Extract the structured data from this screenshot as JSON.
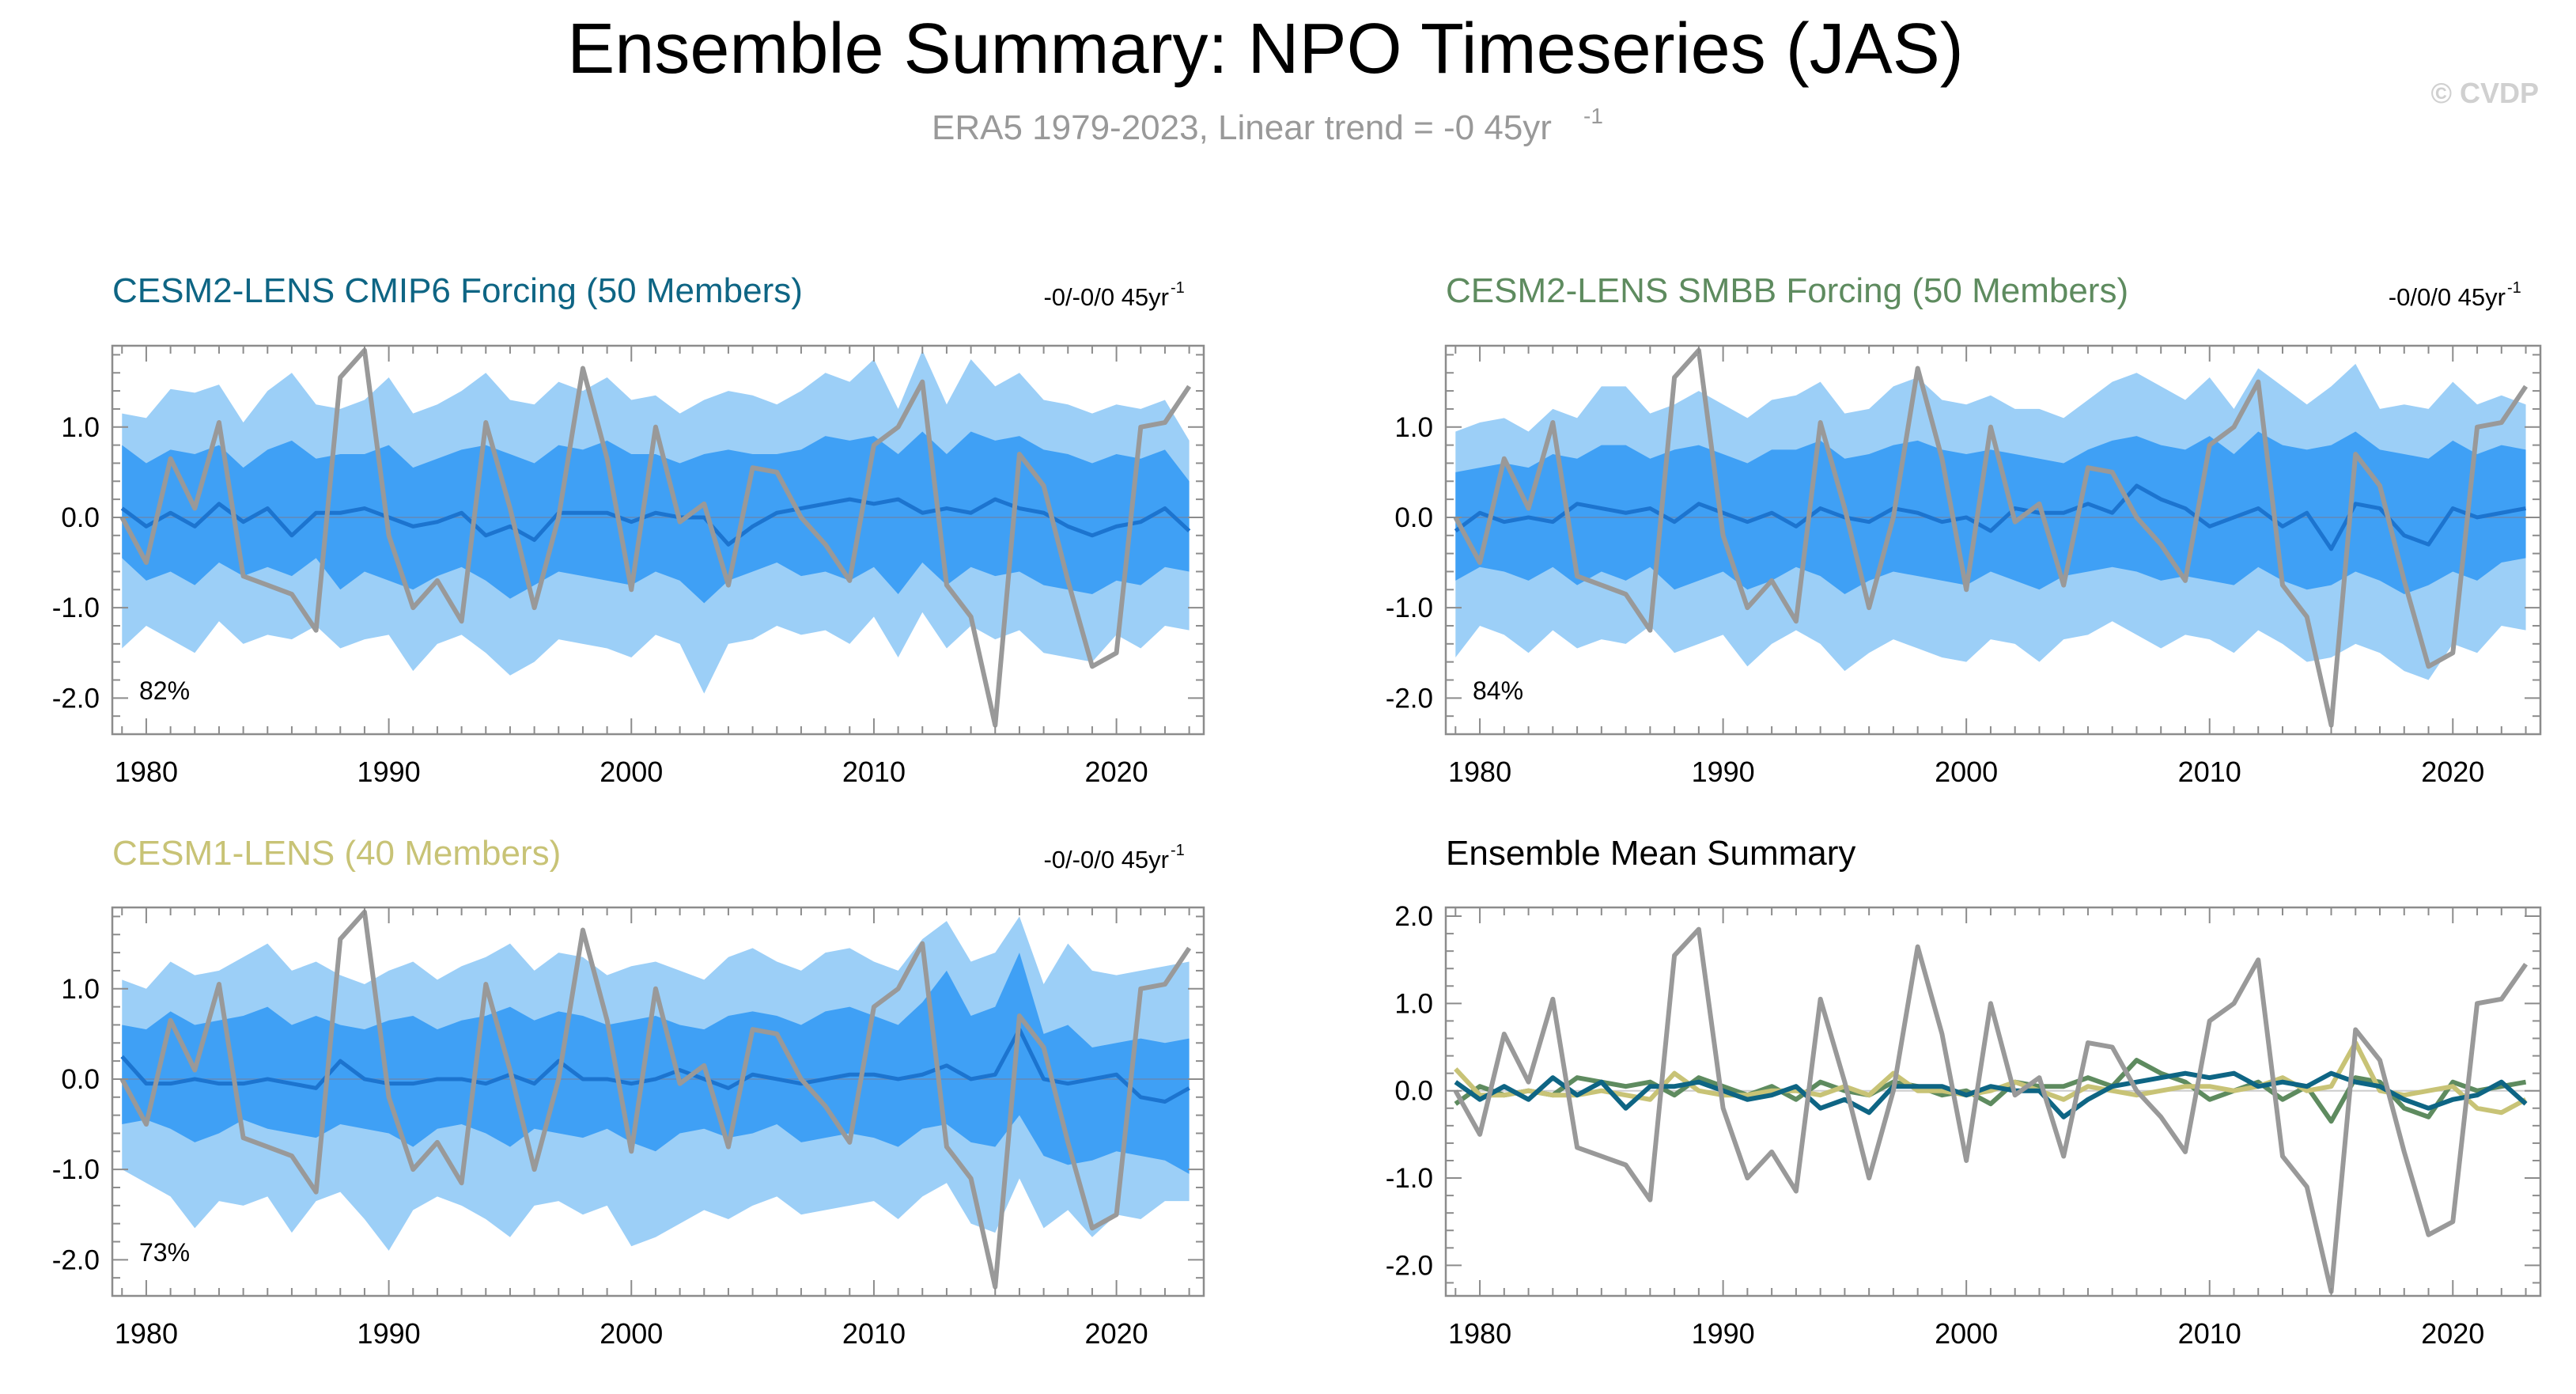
{
  "header": {
    "title": "Ensemble Summary: NPO Timeseries (JAS)",
    "subtitle_main": "ERA5 1979-2023, Linear trend = -0 45yr",
    "subtitle_sup": "-1",
    "watermark": "© CVDP"
  },
  "colors": {
    "obs": "#999999",
    "band_outer": "#9ccff7",
    "band_inner": "#3fa0f5",
    "ens_mean": "#1c74cf",
    "cesm2_cmip6": "#0e6584",
    "cesm2_smbb": "#5e8b5f",
    "cesm1": "#c8c376"
  },
  "chart_data": [
    {
      "id": "cmip6",
      "type": "area",
      "title": "CESM2-LENS CMIP6 Forcing (50 Members)",
      "title_color": "#0e6584",
      "trend_main": "-0/-0/0 45yr",
      "trend_sup": "-1",
      "pct": "82%",
      "xlim": [
        1978.6,
        2023.6
      ],
      "ylim": [
        -2.4,
        1.9
      ],
      "xticks": [
        1980,
        1990,
        2000,
        2010,
        2020
      ],
      "xtick_labels": [
        "1980",
        "1990",
        "2000",
        "2010",
        "2020"
      ],
      "yticks": [
        1.0,
        0.0,
        -1.0,
        -2.0
      ],
      "ytick_labels": [
        "1.0",
        "0.0",
        "-1.0",
        "-2.0"
      ],
      "years_first": 1979,
      "outer_hi": [
        1.15,
        1.1,
        1.42,
        1.38,
        1.47,
        1.05,
        1.4,
        1.6,
        1.25,
        1.2,
        1.3,
        1.55,
        1.15,
        1.25,
        1.4,
        1.6,
        1.3,
        1.25,
        1.5,
        1.4,
        1.55,
        1.3,
        1.35,
        1.15,
        1.3,
        1.4,
        1.35,
        1.25,
        1.4,
        1.6,
        1.5,
        1.75,
        1.2,
        1.85,
        1.25,
        1.75,
        1.45,
        1.6,
        1.3,
        1.25,
        1.15,
        1.25,
        1.2,
        1.3,
        0.85
      ],
      "inner_hi": [
        0.8,
        0.6,
        0.75,
        0.7,
        0.8,
        0.55,
        0.75,
        0.85,
        0.65,
        0.7,
        0.7,
        0.8,
        0.55,
        0.65,
        0.75,
        0.8,
        0.7,
        0.6,
        0.8,
        0.75,
        0.85,
        0.7,
        0.7,
        0.6,
        0.7,
        0.75,
        0.7,
        0.7,
        0.75,
        0.9,
        0.85,
        0.9,
        0.7,
        0.95,
        0.7,
        0.95,
        0.85,
        0.9,
        0.75,
        0.7,
        0.6,
        0.7,
        0.65,
        0.75,
        0.4
      ],
      "inner_lo": [
        -0.45,
        -0.7,
        -0.6,
        -0.75,
        -0.5,
        -0.65,
        -0.55,
        -0.65,
        -0.45,
        -0.8,
        -0.6,
        -0.7,
        -0.8,
        -0.65,
        -0.55,
        -0.7,
        -0.9,
        -0.75,
        -0.6,
        -0.65,
        -0.7,
        -0.75,
        -0.6,
        -0.7,
        -0.95,
        -0.7,
        -0.6,
        -0.5,
        -0.65,
        -0.6,
        -0.7,
        -0.55,
        -0.85,
        -0.5,
        -0.75,
        -0.55,
        -0.65,
        -0.6,
        -0.75,
        -0.8,
        -0.85,
        -0.7,
        -0.75,
        -0.55,
        -0.6
      ],
      "outer_lo": [
        -1.45,
        -1.2,
        -1.35,
        -1.5,
        -1.15,
        -1.4,
        -1.3,
        -1.35,
        -1.2,
        -1.45,
        -1.35,
        -1.3,
        -1.7,
        -1.4,
        -1.3,
        -1.5,
        -1.75,
        -1.6,
        -1.35,
        -1.4,
        -1.45,
        -1.55,
        -1.3,
        -1.4,
        -1.95,
        -1.4,
        -1.35,
        -1.2,
        -1.3,
        -1.25,
        -1.4,
        -1.1,
        -1.55,
        -1.05,
        -1.45,
        -1.2,
        -1.35,
        -1.25,
        -1.5,
        -1.55,
        -1.6,
        -1.3,
        -1.45,
        -1.2,
        -1.25
      ],
      "ens_mean": [
        0.1,
        -0.1,
        0.05,
        -0.1,
        0.15,
        -0.05,
        0.1,
        -0.2,
        0.05,
        0.05,
        0.1,
        0.0,
        -0.1,
        -0.05,
        0.05,
        -0.2,
        -0.1,
        -0.25,
        0.05,
        0.05,
        0.05,
        -0.05,
        0.05,
        0.0,
        0.0,
        -0.3,
        -0.1,
        0.05,
        0.1,
        0.15,
        0.2,
        0.15,
        0.2,
        0.05,
        0.1,
        0.05,
        0.2,
        0.1,
        0.05,
        -0.1,
        -0.2,
        -0.1,
        -0.05,
        0.1,
        -0.15
      ],
      "obs": [
        0.0,
        -0.5,
        0.65,
        0.1,
        1.05,
        -0.65,
        -0.75,
        -0.85,
        -1.25,
        1.55,
        1.85,
        -0.2,
        -1.0,
        -0.7,
        -1.15,
        1.05,
        0.1,
        -1.0,
        0.0,
        1.65,
        0.65,
        -0.8,
        1.0,
        -0.05,
        0.15,
        -0.75,
        0.55,
        0.5,
        0.0,
        -0.3,
        -0.7,
        0.8,
        1.0,
        1.5,
        -0.75,
        -1.1,
        -2.3,
        0.7,
        0.35,
        -0.7,
        -1.65,
        -1.5,
        1.0,
        1.05,
        1.45
      ]
    },
    {
      "id": "smbb",
      "type": "area",
      "title": "CESM2-LENS SMBB Forcing (50 Members)",
      "title_color": "#5e8b5f",
      "trend_main": "-0/0/0 45yr",
      "trend_sup": "-1",
      "pct": "84%",
      "xlim": [
        1978.6,
        2023.6
      ],
      "ylim": [
        -2.4,
        1.9
      ],
      "xticks": [
        1980,
        1990,
        2000,
        2010,
        2020
      ],
      "xtick_labels": [
        "1980",
        "1990",
        "2000",
        "2010",
        "2020"
      ],
      "yticks": [
        1.0,
        0.0,
        -1.0,
        -2.0
      ],
      "ytick_labels": [
        "1.0",
        "0.0",
        "-1.0",
        "-2.0"
      ],
      "years_first": 1979,
      "outer_hi": [
        0.95,
        1.05,
        1.1,
        0.95,
        1.2,
        1.1,
        1.45,
        1.45,
        1.15,
        1.25,
        1.4,
        1.25,
        1.1,
        1.3,
        1.35,
        1.5,
        1.15,
        1.2,
        1.45,
        1.55,
        1.3,
        1.25,
        1.35,
        1.2,
        1.2,
        1.1,
        1.3,
        1.5,
        1.6,
        1.45,
        1.3,
        1.55,
        1.2,
        1.65,
        1.45,
        1.25,
        1.45,
        1.7,
        1.2,
        1.25,
        1.2,
        1.5,
        1.25,
        1.35,
        1.25
      ],
      "inner_hi": [
        0.5,
        0.55,
        0.6,
        0.55,
        0.7,
        0.65,
        0.8,
        0.8,
        0.65,
        0.75,
        0.8,
        0.7,
        0.6,
        0.75,
        0.75,
        0.85,
        0.65,
        0.7,
        0.8,
        0.85,
        0.75,
        0.7,
        0.75,
        0.7,
        0.65,
        0.6,
        0.75,
        0.85,
        0.9,
        0.8,
        0.75,
        0.9,
        0.7,
        0.95,
        0.8,
        0.75,
        0.8,
        0.95,
        0.75,
        0.7,
        0.65,
        0.85,
        0.7,
        0.8,
        0.75
      ],
      "inner_lo": [
        -0.7,
        -0.55,
        -0.6,
        -0.7,
        -0.55,
        -0.75,
        -0.6,
        -0.7,
        -0.55,
        -0.8,
        -0.7,
        -0.6,
        -0.8,
        -0.7,
        -0.55,
        -0.65,
        -0.85,
        -0.7,
        -0.6,
        -0.65,
        -0.7,
        -0.75,
        -0.6,
        -0.7,
        -0.8,
        -0.65,
        -0.6,
        -0.55,
        -0.6,
        -0.7,
        -0.65,
        -0.7,
        -0.75,
        -0.55,
        -0.7,
        -0.8,
        -0.75,
        -0.6,
        -0.7,
        -0.85,
        -0.75,
        -0.6,
        -0.7,
        -0.5,
        -0.45
      ],
      "outer_lo": [
        -1.55,
        -1.2,
        -1.3,
        -1.5,
        -1.25,
        -1.45,
        -1.35,
        -1.4,
        -1.2,
        -1.5,
        -1.4,
        -1.3,
        -1.65,
        -1.4,
        -1.25,
        -1.4,
        -1.7,
        -1.5,
        -1.35,
        -1.45,
        -1.55,
        -1.6,
        -1.35,
        -1.4,
        -1.6,
        -1.35,
        -1.3,
        -1.15,
        -1.3,
        -1.45,
        -1.3,
        -1.35,
        -1.5,
        -1.25,
        -1.4,
        -1.6,
        -1.55,
        -1.4,
        -1.5,
        -1.7,
        -1.8,
        -1.4,
        -1.5,
        -1.2,
        -1.25
      ],
      "ens_mean": [
        -0.15,
        0.05,
        -0.05,
        0.0,
        -0.05,
        0.15,
        0.1,
        0.05,
        0.1,
        -0.05,
        0.15,
        0.05,
        -0.05,
        0.05,
        -0.1,
        0.1,
        0.0,
        -0.05,
        0.1,
        0.05,
        -0.05,
        0.0,
        -0.15,
        0.1,
        0.05,
        0.05,
        0.15,
        0.05,
        0.35,
        0.2,
        0.1,
        -0.1,
        0.0,
        0.1,
        -0.1,
        0.05,
        -0.35,
        0.15,
        0.1,
        -0.2,
        -0.3,
        0.1,
        0.0,
        0.05,
        0.1
      ],
      "obs": [
        0.0,
        -0.5,
        0.65,
        0.1,
        1.05,
        -0.65,
        -0.75,
        -0.85,
        -1.25,
        1.55,
        1.85,
        -0.2,
        -1.0,
        -0.7,
        -1.15,
        1.05,
        0.1,
        -1.0,
        0.0,
        1.65,
        0.65,
        -0.8,
        1.0,
        -0.05,
        0.15,
        -0.75,
        0.55,
        0.5,
        0.0,
        -0.3,
        -0.7,
        0.8,
        1.0,
        1.5,
        -0.75,
        -1.1,
        -2.3,
        0.7,
        0.35,
        -0.7,
        -1.65,
        -1.5,
        1.0,
        1.05,
        1.45
      ]
    },
    {
      "id": "cesm1",
      "type": "area",
      "title": "CESM1-LENS (40 Members)",
      "title_color": "#c8c376",
      "trend_main": "-0/-0/0 45yr",
      "trend_sup": "-1",
      "pct": "73%",
      "xlim": [
        1978.6,
        2023.6
      ],
      "ylim": [
        -2.4,
        1.9
      ],
      "xticks": [
        1980,
        1990,
        2000,
        2010,
        2020
      ],
      "xtick_labels": [
        "1980",
        "1990",
        "2000",
        "2010",
        "2020"
      ],
      "yticks": [
        1.0,
        0.0,
        -1.0,
        -2.0
      ],
      "ytick_labels": [
        "1.0",
        "0.0",
        "-1.0",
        "-2.0"
      ],
      "years_first": 1979,
      "outer_hi": [
        1.1,
        1.0,
        1.3,
        1.15,
        1.2,
        1.35,
        1.5,
        1.2,
        1.3,
        1.15,
        1.05,
        1.2,
        1.3,
        1.1,
        1.25,
        1.35,
        1.5,
        1.2,
        1.4,
        1.35,
        1.15,
        1.25,
        1.3,
        1.2,
        1.1,
        1.35,
        1.45,
        1.3,
        1.2,
        1.4,
        1.45,
        1.3,
        1.2,
        1.55,
        1.75,
        1.3,
        1.4,
        1.8,
        1.05,
        1.5,
        1.2,
        1.15,
        1.2,
        1.25,
        1.3
      ],
      "inner_hi": [
        0.6,
        0.55,
        0.75,
        0.6,
        0.65,
        0.7,
        0.8,
        0.6,
        0.7,
        0.6,
        0.55,
        0.65,
        0.7,
        0.55,
        0.65,
        0.7,
        0.8,
        0.65,
        0.75,
        0.7,
        0.6,
        0.65,
        0.7,
        0.6,
        0.55,
        0.7,
        0.75,
        0.7,
        0.6,
        0.75,
        0.8,
        0.7,
        0.6,
        0.85,
        1.2,
        0.7,
        0.8,
        1.4,
        0.5,
        0.6,
        0.35,
        0.4,
        0.45,
        0.4,
        0.45
      ],
      "inner_lo": [
        -0.5,
        -0.45,
        -0.55,
        -0.7,
        -0.6,
        -0.45,
        -0.55,
        -0.6,
        -0.65,
        -0.5,
        -0.55,
        -0.6,
        -0.75,
        -0.55,
        -0.5,
        -0.6,
        -0.75,
        -0.55,
        -0.6,
        -0.65,
        -0.55,
        -0.7,
        -0.8,
        -0.6,
        -0.55,
        -0.65,
        -0.6,
        -0.5,
        -0.7,
        -0.65,
        -0.6,
        -0.65,
        -0.75,
        -0.55,
        -0.5,
        -0.7,
        -0.75,
        -0.4,
        -0.85,
        -0.95,
        -0.9,
        -0.8,
        -0.85,
        -0.9,
        -1.05
      ],
      "outer_lo": [
        -1.0,
        -1.15,
        -1.3,
        -1.65,
        -1.35,
        -1.4,
        -1.3,
        -1.7,
        -1.35,
        -1.25,
        -1.55,
        -1.9,
        -1.45,
        -1.3,
        -1.4,
        -1.55,
        -1.75,
        -1.4,
        -1.35,
        -1.5,
        -1.4,
        -1.85,
        -1.75,
        -1.6,
        -1.45,
        -1.55,
        -1.4,
        -1.3,
        -1.5,
        -1.45,
        -1.4,
        -1.35,
        -1.55,
        -1.3,
        -1.15,
        -1.6,
        -1.7,
        -1.1,
        -1.65,
        -1.45,
        -1.75,
        -1.5,
        -1.55,
        -1.35,
        -1.35
      ],
      "ens_mean": [
        0.25,
        -0.05,
        -0.05,
        0.0,
        -0.05,
        -0.05,
        0.0,
        -0.05,
        -0.1,
        0.2,
        0.0,
        -0.05,
        -0.05,
        0.0,
        0.0,
        -0.05,
        0.05,
        -0.05,
        0.2,
        0.0,
        0.0,
        -0.05,
        0.0,
        0.1,
        0.0,
        -0.1,
        0.05,
        0.0,
        -0.05,
        0.0,
        0.05,
        0.05,
        0.0,
        0.05,
        0.15,
        0.0,
        0.05,
        0.55,
        0.0,
        -0.05,
        0.0,
        0.05,
        -0.2,
        -0.25,
        -0.1
      ],
      "obs": [
        0.0,
        -0.5,
        0.65,
        0.1,
        1.05,
        -0.65,
        -0.75,
        -0.85,
        -1.25,
        1.55,
        1.85,
        -0.2,
        -1.0,
        -0.7,
        -1.15,
        1.05,
        0.1,
        -1.0,
        0.0,
        1.65,
        0.65,
        -0.8,
        1.0,
        -0.05,
        0.15,
        -0.75,
        0.55,
        0.5,
        0.0,
        -0.3,
        -0.7,
        0.8,
        1.0,
        1.5,
        -0.75,
        -1.1,
        -2.3,
        0.7,
        0.35,
        -0.7,
        -1.65,
        -1.5,
        1.0,
        1.05,
        1.45
      ]
    },
    {
      "id": "summary",
      "type": "line",
      "title": "Ensemble Mean Summary",
      "title_color": "#000000",
      "xlim": [
        1978.6,
        2023.6
      ],
      "ylim": [
        -2.35,
        2.1
      ],
      "xticks": [
        1980,
        1990,
        2000,
        2010,
        2020
      ],
      "xtick_labels": [
        "1980",
        "1990",
        "2000",
        "2010",
        "2020"
      ],
      "yticks": [
        2.0,
        1.0,
        0.0,
        -1.0,
        -2.0
      ],
      "ytick_labels": [
        "2.0",
        "1.0",
        "0.0",
        "-1.0",
        "-2.0"
      ],
      "years_first": 1979,
      "series": [
        {
          "name": "CESM2-LENS SMBB Forcing",
          "color": "#5e8b5f",
          "values": [
            -0.15,
            0.05,
            -0.05,
            0.0,
            -0.05,
            0.15,
            0.1,
            0.05,
            0.1,
            -0.05,
            0.15,
            0.05,
            -0.05,
            0.05,
            -0.1,
            0.1,
            0.0,
            -0.05,
            0.1,
            0.05,
            -0.05,
            0.0,
            -0.15,
            0.1,
            0.05,
            0.05,
            0.15,
            0.05,
            0.35,
            0.2,
            0.1,
            -0.1,
            0.0,
            0.1,
            -0.1,
            0.05,
            -0.35,
            0.15,
            0.1,
            -0.2,
            -0.3,
            0.1,
            0.0,
            0.05,
            0.1
          ]
        },
        {
          "name": "CESM1-LENS",
          "color": "#c8c376",
          "values": [
            0.25,
            -0.05,
            -0.05,
            0.0,
            -0.05,
            -0.05,
            0.0,
            -0.05,
            -0.1,
            0.2,
            0.0,
            -0.05,
            -0.05,
            0.0,
            0.0,
            -0.05,
            0.05,
            -0.05,
            0.2,
            0.0,
            0.0,
            -0.05,
            0.0,
            0.1,
            0.0,
            -0.1,
            0.05,
            0.0,
            -0.05,
            0.0,
            0.05,
            0.05,
            0.0,
            0.05,
            0.15,
            0.0,
            0.05,
            0.55,
            0.0,
            -0.05,
            0.0,
            0.05,
            -0.2,
            -0.25,
            -0.1
          ]
        },
        {
          "name": "CESM2-LENS CMIP6 Forcing",
          "color": "#0e6584",
          "values": [
            0.1,
            -0.1,
            0.05,
            -0.1,
            0.15,
            -0.05,
            0.1,
            -0.2,
            0.05,
            0.05,
            0.1,
            0.0,
            -0.1,
            -0.05,
            0.05,
            -0.2,
            -0.1,
            -0.25,
            0.05,
            0.05,
            0.05,
            -0.05,
            0.05,
            0.0,
            0.0,
            -0.3,
            -0.1,
            0.05,
            0.1,
            0.15,
            0.2,
            0.15,
            0.2,
            0.05,
            0.1,
            0.05,
            0.2,
            0.1,
            0.05,
            -0.1,
            -0.2,
            -0.1,
            -0.05,
            0.1,
            -0.15
          ]
        },
        {
          "name": "ERA5",
          "color": "#999999",
          "values": [
            0.0,
            -0.5,
            0.65,
            0.1,
            1.05,
            -0.65,
            -0.75,
            -0.85,
            -1.25,
            1.55,
            1.85,
            -0.2,
            -1.0,
            -0.7,
            -1.15,
            1.05,
            0.1,
            -1.0,
            0.0,
            1.65,
            0.65,
            -0.8,
            1.0,
            -0.05,
            0.15,
            -0.75,
            0.55,
            0.5,
            0.0,
            -0.3,
            -0.7,
            0.8,
            1.0,
            1.5,
            -0.75,
            -1.1,
            -2.3,
            0.7,
            0.35,
            -0.7,
            -1.65,
            -1.5,
            1.0,
            1.05,
            1.45
          ]
        }
      ]
    }
  ]
}
